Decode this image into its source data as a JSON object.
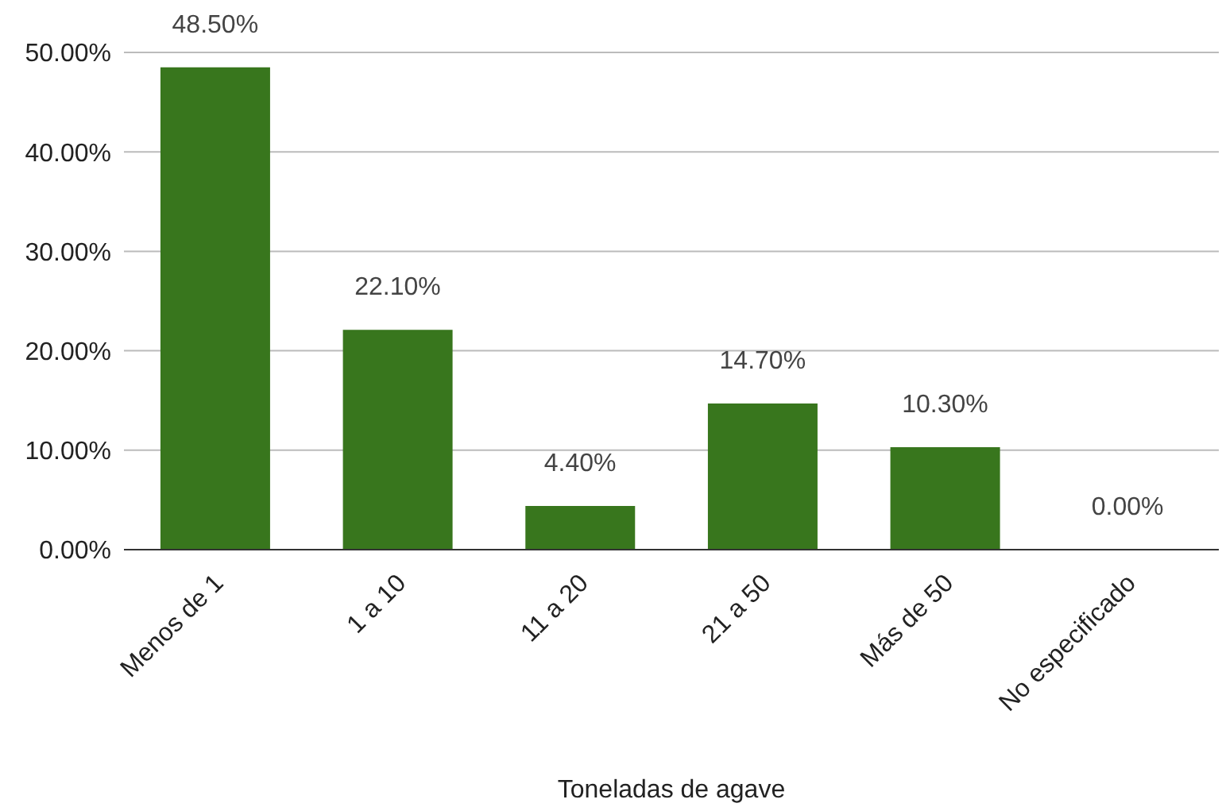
{
  "chart_data": {
    "type": "bar",
    "xlabel": "Toneladas de agave",
    "categories": [
      "Menos de 1",
      "1 a 10",
      "11 a 20",
      "21 a 50",
      "Más de 50",
      "No especificado"
    ],
    "values": [
      48.5,
      22.1,
      4.4,
      14.7,
      10.3,
      0
    ],
    "value_labels": [
      "48.50%",
      "22.10%",
      "4.40%",
      "14.70%",
      "10.30%",
      "0.00%"
    ],
    "color": "#38761d",
    "ylim": [
      0,
      50
    ],
    "yticks": [
      {
        "value": 0,
        "label": "0.00%"
      },
      {
        "value": 10,
        "label": "10.00%"
      },
      {
        "value": 20,
        "label": "20.00%"
      },
      {
        "value": 30,
        "label": "30.00%"
      },
      {
        "value": 40,
        "label": "40.00%"
      },
      {
        "value": 50,
        "label": "50.00%"
      }
    ],
    "grid": "y"
  }
}
